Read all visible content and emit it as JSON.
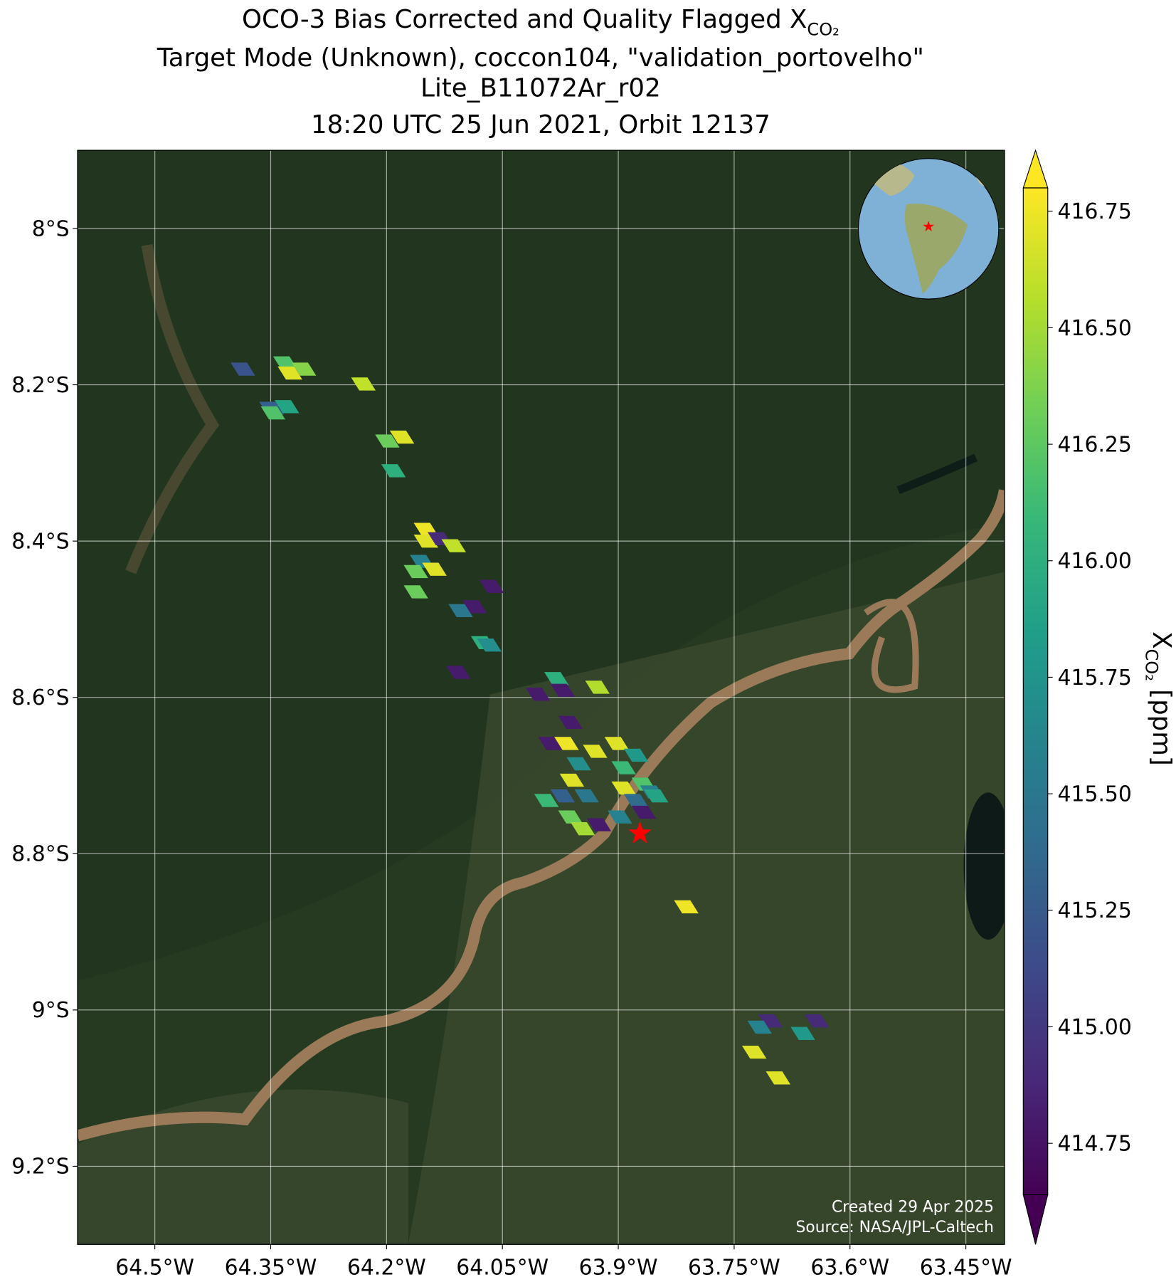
{
  "chart_data": {
    "type": "map",
    "title": {
      "line1": "OCO-3 Bias Corrected and Quality Flagged X",
      "line1_sub": "CO₂",
      "line2": "Target Mode (Unknown), coccon104, \"validation_portovelho\"",
      "line3": "Lite_B11072Ar_r02",
      "line4": "18:20 UTC 25 Jun 2021, Orbit 12137"
    },
    "xlim": [
      -64.6,
      -63.4
    ],
    "ylim": [
      -9.3,
      -7.9
    ],
    "xticks": [
      {
        "value": -64.5,
        "label": "64.5°W"
      },
      {
        "value": -64.35,
        "label": "64.35°W"
      },
      {
        "value": -64.2,
        "label": "64.2°W"
      },
      {
        "value": -64.05,
        "label": "64.05°W"
      },
      {
        "value": -63.9,
        "label": "63.9°W"
      },
      {
        "value": -63.75,
        "label": "63.75°W"
      },
      {
        "value": -63.6,
        "label": "63.6°W"
      },
      {
        "value": -63.45,
        "label": "63.45°W"
      }
    ],
    "yticks": [
      {
        "value": -8,
        "label": "8°S"
      },
      {
        "value": -8.2,
        "label": "8.2°S"
      },
      {
        "value": -8.4,
        "label": "8.4°S"
      },
      {
        "value": -8.6,
        "label": "8.6°S"
      },
      {
        "value": -8.8,
        "label": "8.8°S"
      },
      {
        "value": -9,
        "label": "9°S"
      },
      {
        "value": -9.2,
        "label": "9.2°S"
      }
    ],
    "grid": true,
    "colormap": "viridis",
    "clim": [
      414.64,
      416.8
    ],
    "colorbar": {
      "label": "X",
      "label_sub": "CO₂",
      "label_unit": " [ppm]",
      "ticks": [
        414.75,
        {
          "value": 415,
          "label": "415.00"
        },
        415.25,
        {
          "value": 415.5,
          "label": "415.50"
        },
        415.75,
        {
          "value": 416,
          "label": "416.00"
        },
        416.25,
        {
          "value": 416.5,
          "label": "416.50"
        },
        416.75
      ]
    },
    "soundings": {
      "lon": [
        -64.386,
        -64.331,
        -64.325,
        -64.307,
        -64.23,
        -64.349,
        -64.347,
        -64.329,
        -64.199,
        -64.18,
        -64.191,
        -64.149,
        -64.149,
        -64.131,
        -64.113,
        -64.154,
        -64.162,
        -64.138,
        -64.162,
        -64.104,
        -64.086,
        -64.064,
        -64.075,
        -64.067,
        -64.107,
        -63.98,
        -64.004,
        -63.972,
        -63.927,
        -63.962,
        -63.988,
        -63.967,
        -63.951,
        -63.96,
        -63.93,
        -63.941,
        -63.972,
        -63.993,
        -63.962,
        -63.946,
        -63.925,
        -63.902,
        -63.877,
        -63.893,
        -63.867,
        -63.893,
        -63.877,
        -63.856,
        -63.867,
        -63.898,
        -63.851,
        -63.812,
        -63.703,
        -63.717,
        -63.724,
        -63.661,
        -63.643,
        -63.693
      ],
      "lat": [
        -8.18,
        -8.172,
        -8.185,
        -8.18,
        -8.199,
        -8.23,
        -8.236,
        -8.228,
        -8.272,
        -8.267,
        -8.31,
        -8.385,
        -8.4,
        -8.397,
        -8.406,
        -8.426,
        -8.439,
        -8.436,
        -8.465,
        -8.489,
        -8.484,
        -8.458,
        -8.53,
        -8.533,
        -8.568,
        -8.576,
        -8.596,
        -8.591,
        -8.587,
        -8.632,
        -8.659,
        -8.659,
        -8.685,
        -8.706,
        -8.669,
        -8.726,
        -8.726,
        -8.732,
        -8.753,
        -8.768,
        -8.763,
        -8.659,
        -8.674,
        -8.69,
        -8.711,
        -8.716,
        -8.732,
        -8.721,
        -8.747,
        -8.753,
        -8.726,
        -8.868,
        -9.014,
        -9.022,
        -9.054,
        -9.03,
        -9.014,
        -9.087
      ],
      "xco2": [
        415.2,
        416.2,
        416.7,
        416.4,
        416.6,
        415.3,
        416.2,
        415.9,
        416.3,
        416.7,
        416.0,
        416.75,
        416.7,
        414.9,
        416.6,
        415.6,
        416.3,
        416.7,
        416.3,
        415.5,
        414.8,
        414.8,
        416.0,
        415.7,
        414.8,
        416.0,
        414.8,
        414.8,
        416.55,
        414.8,
        414.8,
        416.75,
        415.7,
        416.7,
        416.7,
        415.5,
        415.3,
        416.1,
        416.3,
        416.5,
        414.8,
        416.7,
        415.8,
        416.1,
        416.2,
        416.7,
        415.4,
        415.6,
        414.8,
        415.6,
        415.9,
        416.75,
        414.9,
        415.6,
        416.7,
        415.8,
        414.9,
        416.7
      ]
    },
    "site": {
      "lon": -63.872,
      "lat": -8.774
    },
    "footnote": {
      "line1": "Created 29 Apr 2025",
      "line2": "Source: NASA/JPL-Caltech"
    }
  }
}
